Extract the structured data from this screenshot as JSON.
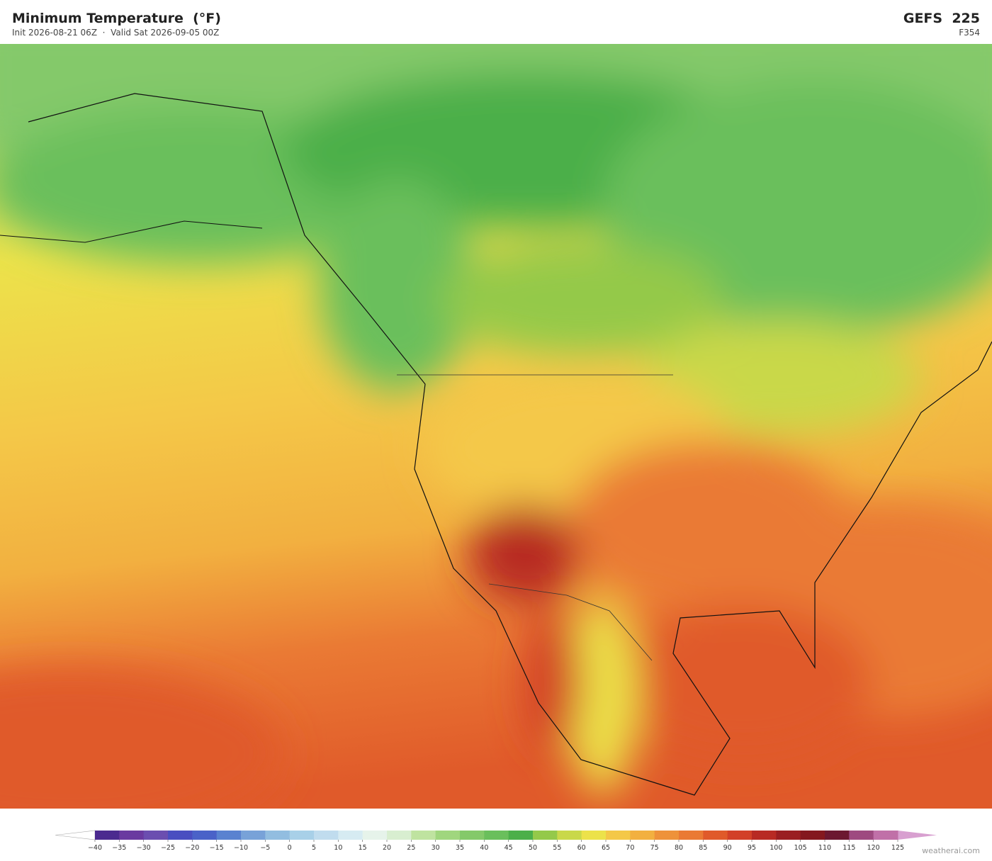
{
  "header": {
    "title": "Minimum Temperature  (°F)",
    "subtitle": "Init 2026-08-21 06Z  ·  Valid Sat 2026-09-05 00Z",
    "model": "GEFS  225",
    "forecast_hour": "F354"
  },
  "colorbar": {
    "ticks": [
      {
        "value": -40,
        "label": "−40"
      },
      {
        "value": -35,
        "label": "−35"
      },
      {
        "value": -30,
        "label": "−30"
      },
      {
        "value": -25,
        "label": "−25"
      },
      {
        "value": -20,
        "label": "−20"
      },
      {
        "value": -15,
        "label": "−15"
      },
      {
        "value": -10,
        "label": "−10"
      },
      {
        "value": -5,
        "label": "−5"
      },
      0,
      5,
      10,
      15,
      20,
      25,
      30,
      35,
      40,
      45,
      50,
      55,
      60,
      65,
      70,
      75,
      80,
      85,
      90,
      95,
      100,
      105,
      110,
      115,
      120,
      125
    ],
    "colors": [
      "#4b2a8f",
      "#6a3aa0",
      "#6b4eb0",
      "#4a4ec0",
      "#4a62c8",
      "#5a82d0",
      "#78a2d8",
      "#92bde0",
      "#a8d0e8",
      "#c0dcee",
      "#d6ebf2",
      "#e6f3ea",
      "#d8eed0",
      "#bfe3a0",
      "#a0d67e",
      "#84c96a",
      "#6abf5c",
      "#4caf4a",
      "#94c94a",
      "#c9d84a",
      "#ece24a",
      "#f4c848",
      "#f2b040",
      "#ee923a",
      "#ea7a34",
      "#e05a2a",
      "#d24028",
      "#b82a24",
      "#9a1e22",
      "#84181e",
      "#6c1830",
      "#9e4a80",
      "#c070a8"
    ],
    "under_color": "#ffffff",
    "over_color": "#d8a0d0"
  },
  "credit": "weatherai.com"
}
